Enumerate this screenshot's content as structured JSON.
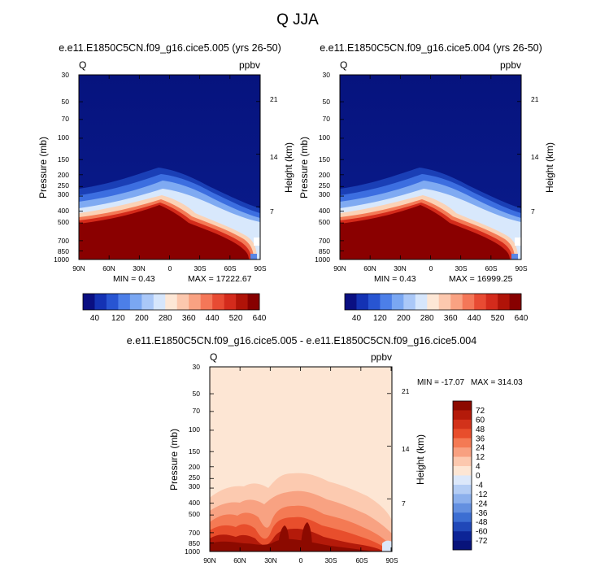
{
  "figure_title": "Q JJA",
  "chart_data": [
    {
      "type": "heatmap",
      "title": "e.e11.E1850C5CN.f09_g16.cice5.005 (yrs 26-50)",
      "variable": "Q",
      "units": "ppbv",
      "ylabel": "Pressure (mb)",
      "ylabel_right": "Height (km)",
      "x_ticks": [
        "90N",
        "60N",
        "30N",
        "0",
        "30S",
        "60S",
        "90S"
      ],
      "y_ticks": [
        "30",
        "50",
        "70",
        "100",
        "150",
        "200",
        "250",
        "300",
        "400",
        "500",
        "700",
        "850",
        "1000"
      ],
      "y_right_ticks": [
        "21",
        "14",
        "7"
      ],
      "min_label": "MIN =   0.43",
      "max_label": "MAX = 17222.67",
      "colorbar": {
        "labels": [
          "40",
          "120",
          "200",
          "280",
          "360",
          "440",
          "520",
          "640"
        ],
        "colors": [
          "#0a0f82",
          "#1432b4",
          "#2855d2",
          "#4c7fe8",
          "#7aa7f2",
          "#aac8f8",
          "#d6e6fc",
          "#fde7d6",
          "#fcc8ae",
          "#f9a282",
          "#f47758",
          "#e84b33",
          "#d42b1c",
          "#b01308",
          "#870000"
        ]
      }
    },
    {
      "type": "heatmap",
      "title": "e.e11.E1850C5CN.f09_g16.cice5.004 (yrs 26-50)",
      "variable": "Q",
      "units": "ppbv",
      "ylabel": "Pressure (mb)",
      "ylabel_right": "Height (km)",
      "x_ticks": [
        "90N",
        "60N",
        "30N",
        "0",
        "30S",
        "60S",
        "90S"
      ],
      "y_ticks": [
        "30",
        "50",
        "70",
        "100",
        "150",
        "200",
        "250",
        "300",
        "400",
        "500",
        "700",
        "850",
        "1000"
      ],
      "y_right_ticks": [
        "21",
        "14",
        "7"
      ],
      "min_label": "MIN =   0.43",
      "max_label": "MAX = 16999.25",
      "colorbar": {
        "labels": [
          "40",
          "120",
          "200",
          "280",
          "360",
          "440",
          "520",
          "640"
        ],
        "colors": [
          "#0a0f82",
          "#1432b4",
          "#2855d2",
          "#4c7fe8",
          "#7aa7f2",
          "#aac8f8",
          "#d6e6fc",
          "#fde7d6",
          "#fcc8ae",
          "#f9a282",
          "#f47758",
          "#e84b33",
          "#d42b1c",
          "#b01308",
          "#870000"
        ]
      }
    },
    {
      "type": "heatmap",
      "title": "e.e11.E1850C5CN.f09_g16.cice5.005 - e.e11.E1850C5CN.f09_g16.cice5.004",
      "variable": "Q",
      "units": "ppbv",
      "ylabel": "Pressure (mb)",
      "ylabel_right": "Height (km)",
      "x_ticks": [
        "90N",
        "60N",
        "30N",
        "0",
        "30S",
        "60S",
        "90S"
      ],
      "y_ticks": [
        "30",
        "50",
        "70",
        "100",
        "150",
        "200",
        "250",
        "300",
        "400",
        "500",
        "700",
        "850",
        "1000"
      ],
      "y_right_ticks": [
        "21",
        "14",
        "7"
      ],
      "min_label": "MIN = -17.07",
      "max_label": "MAX = 314.03",
      "colorbar": {
        "labels": [
          "72",
          "60",
          "48",
          "36",
          "24",
          "12",
          "4",
          "0",
          "-4",
          "-12",
          "-24",
          "-36",
          "-48",
          "-60",
          "-72"
        ],
        "colors": [
          "#8c0a00",
          "#b41a0a",
          "#d2321a",
          "#e84e2c",
          "#f47a54",
          "#f8a080",
          "#fcc8ae",
          "#fde6d4",
          "#dce8fa",
          "#b4cdf4",
          "#8cb0ec",
          "#6490e0",
          "#3c6ed2",
          "#2048b8",
          "#0c2496",
          "#08137a"
        ]
      }
    }
  ]
}
